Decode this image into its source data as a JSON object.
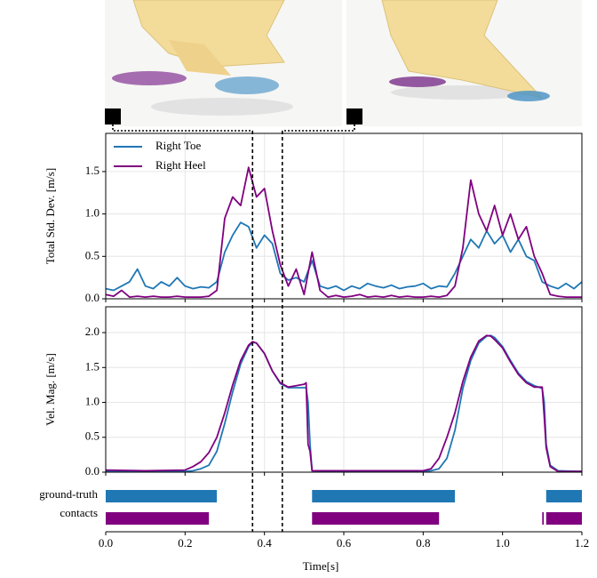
{
  "chart_data": [
    {
      "type": "line",
      "ylabel": "Total Std. Dev. [m/s]",
      "legend": "upper left",
      "grid": true,
      "xlim": [
        0,
        1.2
      ],
      "ylim": [
        0,
        1.95
      ],
      "xticks": [
        {
          "value": 0,
          "label": "0.0"
        },
        0.2,
        0.4,
        0.6,
        0.8,
        {
          "value": 1,
          "label": "1.0"
        },
        1.2
      ],
      "yticks": [
        {
          "value": 0,
          "label": "0.0"
        },
        0.5,
        {
          "value": 1,
          "label": "1.0"
        },
        1.5
      ],
      "x": [
        0,
        0.02,
        0.04,
        0.06,
        0.08,
        0.1,
        0.12,
        0.14,
        0.16,
        0.18,
        0.2,
        0.22,
        0.24,
        0.26,
        0.28,
        0.3,
        0.32,
        0.34,
        0.36,
        0.38,
        0.4,
        0.42,
        0.44,
        0.46,
        0.48,
        0.5,
        0.52,
        0.54,
        0.56,
        0.58,
        0.6,
        0.62,
        0.64,
        0.66,
        0.68,
        0.7,
        0.72,
        0.74,
        0.76,
        0.78,
        0.8,
        0.82,
        0.84,
        0.86,
        0.88,
        0.9,
        0.92,
        0.94,
        0.96,
        0.98,
        1.0,
        1.02,
        1.04,
        1.06,
        1.08,
        1.1,
        1.12,
        1.14,
        1.16,
        1.18,
        1.2
      ],
      "series": [
        {
          "name": "Right Toe",
          "color": "#1f77b4",
          "values": [
            0.12,
            0.1,
            0.15,
            0.2,
            0.35,
            0.15,
            0.12,
            0.2,
            0.15,
            0.25,
            0.15,
            0.12,
            0.14,
            0.13,
            0.2,
            0.55,
            0.75,
            0.9,
            0.85,
            0.6,
            0.75,
            0.65,
            0.3,
            0.22,
            0.25,
            0.2,
            0.45,
            0.15,
            0.12,
            0.15,
            0.1,
            0.15,
            0.12,
            0.18,
            0.15,
            0.13,
            0.16,
            0.12,
            0.14,
            0.15,
            0.18,
            0.12,
            0.15,
            0.14,
            0.3,
            0.5,
            0.7,
            0.6,
            0.8,
            0.65,
            0.75,
            0.55,
            0.7,
            0.5,
            0.45,
            0.2,
            0.15,
            0.12,
            0.18,
            0.12,
            0.2
          ]
        },
        {
          "name": "Right Heel",
          "color": "#800080",
          "values": [
            0.05,
            0.03,
            0.1,
            0.02,
            0.03,
            0.02,
            0.03,
            0.02,
            0.02,
            0.03,
            0.02,
            0.02,
            0.02,
            0.03,
            0.1,
            0.95,
            1.2,
            1.1,
            1.55,
            1.2,
            1.3,
            0.8,
            0.4,
            0.15,
            0.35,
            0.05,
            0.55,
            0.1,
            0.02,
            0.04,
            0.02,
            0.03,
            0.05,
            0.02,
            0.03,
            0.02,
            0.04,
            0.02,
            0.03,
            0.02,
            0.02,
            0.03,
            0.02,
            0.04,
            0.15,
            0.6,
            1.4,
            1.0,
            0.8,
            1.1,
            0.75,
            1.0,
            0.7,
            0.85,
            0.5,
            0.3,
            0.05,
            0.03,
            0.02,
            0.02,
            0.02
          ]
        }
      ]
    },
    {
      "type": "line",
      "ylabel": "Vel. Mag. [m/s]",
      "grid": true,
      "xlim": [
        0,
        1.2
      ],
      "ylim": [
        0,
        2.37
      ],
      "xticks": [
        {
          "value": 0,
          "label": "0.0"
        },
        0.2,
        0.4,
        0.6,
        0.8,
        {
          "value": 1,
          "label": "1.0"
        },
        1.2
      ],
      "yticks": [
        {
          "value": 0,
          "label": "0.0"
        },
        0.5,
        {
          "value": 1,
          "label": "1.0"
        },
        1.5,
        {
          "value": 2,
          "label": "2.0"
        }
      ],
      "x": [
        0,
        0.1,
        0.2,
        0.22,
        0.24,
        0.26,
        0.28,
        0.3,
        0.32,
        0.34,
        0.36,
        0.37,
        0.38,
        0.4,
        0.42,
        0.44,
        0.46,
        0.48,
        0.5,
        0.505,
        0.51,
        0.515,
        0.52,
        0.6,
        0.7,
        0.8,
        0.82,
        0.84,
        0.86,
        0.88,
        0.9,
        0.92,
        0.94,
        0.96,
        0.97,
        0.98,
        1.0,
        1.02,
        1.04,
        1.06,
        1.08,
        1.1,
        1.105,
        1.11,
        1.12,
        1.14,
        1.2
      ],
      "series": [
        {
          "name": "Right Toe",
          "color": "#1f77b4",
          "values": [
            0.01,
            0.01,
            0.01,
            0.02,
            0.05,
            0.1,
            0.3,
            0.7,
            1.15,
            1.55,
            1.8,
            1.86,
            1.85,
            1.7,
            1.45,
            1.27,
            1.21,
            1.21,
            1.21,
            1.21,
            1.0,
            0.4,
            0.02,
            0.01,
            0.01,
            0.01,
            0.02,
            0.05,
            0.2,
            0.6,
            1.2,
            1.6,
            1.85,
            1.95,
            1.96,
            1.93,
            1.8,
            1.6,
            1.42,
            1.3,
            1.24,
            1.2,
            1.0,
            0.4,
            0.1,
            0.02,
            0.01
          ]
        },
        {
          "name": "Right Heel",
          "color": "#800080",
          "values": [
            0.03,
            0.02,
            0.03,
            0.08,
            0.15,
            0.28,
            0.5,
            0.85,
            1.25,
            1.6,
            1.82,
            1.87,
            1.85,
            1.7,
            1.45,
            1.28,
            1.22,
            1.24,
            1.26,
            1.28,
            0.4,
            0.3,
            0.02,
            0.02,
            0.02,
            0.02,
            0.05,
            0.2,
            0.5,
            0.85,
            1.3,
            1.65,
            1.88,
            1.96,
            1.95,
            1.9,
            1.78,
            1.58,
            1.4,
            1.28,
            1.22,
            1.22,
            0.8,
            0.35,
            0.08,
            0.01,
            0.01
          ]
        }
      ]
    },
    {
      "type": "timeline",
      "ylabel": [
        "ground-truth",
        "contacts"
      ],
      "xlabel": "Time[s]",
      "xlim": [
        0,
        1.2
      ],
      "xticks": [
        {
          "value": 0,
          "label": "0.0"
        },
        0.2,
        0.4,
        0.6,
        0.8,
        {
          "value": 1,
          "label": "1.0"
        },
        1.2
      ],
      "series": [
        {
          "color": "#1f77b4",
          "intervals": [
            [
              0,
              0.28
            ],
            [
              0.52,
              0.88
            ],
            [
              1.11,
              1.2
            ]
          ]
        },
        {
          "color": "#800080",
          "intervals": [
            [
              0,
              0.26
            ],
            [
              0.52,
              0.84
            ],
            [
              1.1,
              1.104
            ],
            [
              1.11,
              1.2
            ]
          ]
        }
      ]
    }
  ],
  "highlight_x": [
    0.37,
    0.445
  ]
}
